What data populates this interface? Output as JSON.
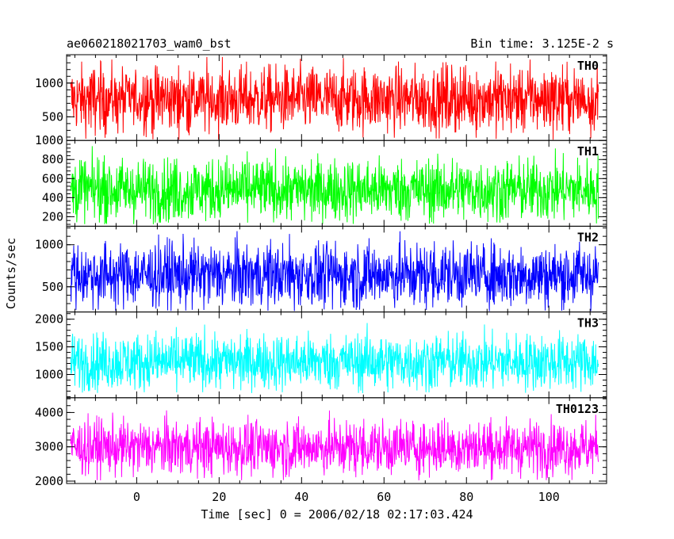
{
  "chart_data": {
    "type": "line",
    "title_left": "ae060218021703_wam0_bst",
    "title_right": "Bin time: 3.125E-2 s",
    "xlabel": "Time [sec] 0 = 2006/02/18 02:17:03.424",
    "ylabel": "Counts/sec",
    "xlim": [
      -17,
      114
    ],
    "x_data_range": [
      -16,
      112
    ],
    "xticks": [
      0,
      20,
      40,
      60,
      80,
      100
    ],
    "xtick_labels": [
      "0",
      "20",
      "40",
      "60",
      "80",
      "100"
    ],
    "grid": false,
    "series": [
      {
        "name": "TH0",
        "color": "#ff0000",
        "ylim": [
          150,
          1420
        ],
        "yticks": [
          500,
          1000
        ],
        "ytick_labels": [
          "500",
          "1000"
        ],
        "mean": 760,
        "typical_low": 280,
        "typical_high": 1250,
        "min": 160,
        "max": 1400
      },
      {
        "name": "TH1",
        "color": "#00ff00",
        "ylim": [
          100,
          1000
        ],
        "yticks": [
          200,
          400,
          600,
          800,
          1000
        ],
        "ytick_labels": [
          "200",
          "400",
          "600",
          "800",
          "1000"
        ],
        "mean": 480,
        "typical_low": 170,
        "typical_high": 830,
        "min": 120,
        "max": 960
      },
      {
        "name": "TH2",
        "color": "#0000ff",
        "ylim": [
          200,
          1220
        ],
        "yticks": [
          500,
          1000
        ],
        "ytick_labels": [
          "500",
          "1000"
        ],
        "mean": 640,
        "typical_low": 290,
        "typical_high": 1060,
        "min": 210,
        "max": 1200
      },
      {
        "name": "TH3",
        "color": "#00ffff",
        "ylim": [
          580,
          2130
        ],
        "yticks": [
          1000,
          1500,
          2000
        ],
        "ytick_labels": [
          "1000",
          "1500",
          "2000"
        ],
        "mean": 1230,
        "typical_low": 780,
        "typical_high": 1800,
        "min": 660,
        "max": 2100
      },
      {
        "name": "TH0123",
        "color": "#ff00ff",
        "ylim": [
          1930,
          4430
        ],
        "yticks": [
          2000,
          3000,
          4000
        ],
        "ytick_labels": [
          "2000",
          "3000",
          "4000"
        ],
        "mean": 2980,
        "typical_low": 2250,
        "typical_high": 3850,
        "min": 2020,
        "max": 4400
      }
    ]
  }
}
